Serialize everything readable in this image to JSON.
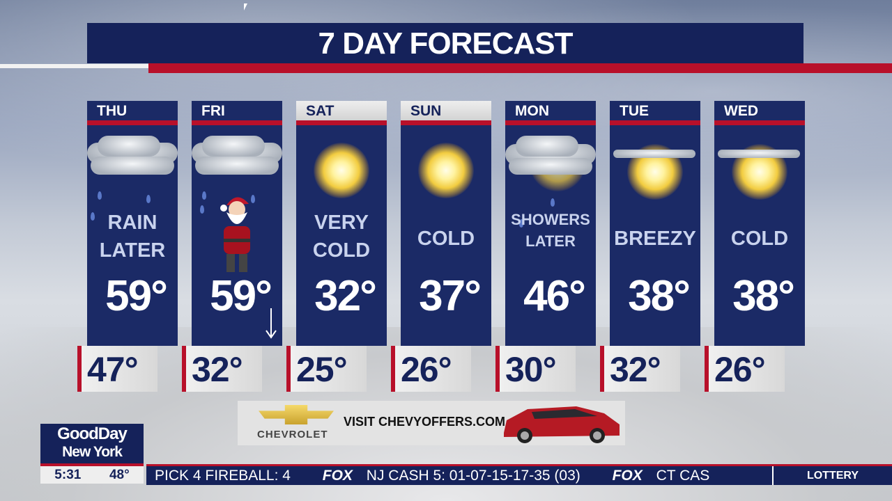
{
  "title": "7 DAY FORECAST",
  "days": [
    {
      "day": "THU",
      "cond1": "RAIN",
      "cond2": "LATER",
      "high": "59°",
      "low": "47°",
      "icon": "cloud-rain-icon",
      "header_style": "dark"
    },
    {
      "day": "FRI",
      "cond1": "",
      "cond2": "",
      "high": "59°",
      "low": "32°",
      "icon": "santa-icon",
      "header_style": "dark",
      "trend": "falling-arrow-icon"
    },
    {
      "day": "SAT",
      "cond1": "VERY",
      "cond2": "COLD",
      "high": "32°",
      "low": "25°",
      "icon": "sun-icon",
      "header_style": "light"
    },
    {
      "day": "SUN",
      "cond1": "COLD",
      "cond2": "",
      "high": "37°",
      "low": "26°",
      "icon": "sun-icon",
      "header_style": "light"
    },
    {
      "day": "MON",
      "cond1": "SHOWERS",
      "cond2": "LATER",
      "high": "46°",
      "low": "30°",
      "icon": "cloud-sun-rain-icon",
      "header_style": "dark"
    },
    {
      "day": "TUE",
      "cond1": "BREEZY",
      "cond2": "",
      "high": "38°",
      "low": "32°",
      "icon": "partly-sunny-icon",
      "header_style": "dark"
    },
    {
      "day": "WED",
      "cond1": "COLD",
      "cond2": "",
      "high": "38°",
      "low": "26°",
      "icon": "partly-sunny-icon",
      "header_style": "dark"
    }
  ],
  "ad": {
    "brand": "CHEVROLET",
    "text": "VISIT CHEVYOFFERS.COM"
  },
  "station": {
    "line1": "GoodDay",
    "line2": "New York",
    "time": "5:31",
    "temp": "48°"
  },
  "ticker": {
    "items": [
      "PICK 4 FIREBALL: 4",
      "FOX",
      "NJ CASH 5: 01-07-15-17-35 (03)",
      "FOX",
      "CT CAS"
    ],
    "category": "LOTTERY"
  },
  "colors": {
    "navy": "#1b2a66",
    "red": "#b8102a"
  }
}
